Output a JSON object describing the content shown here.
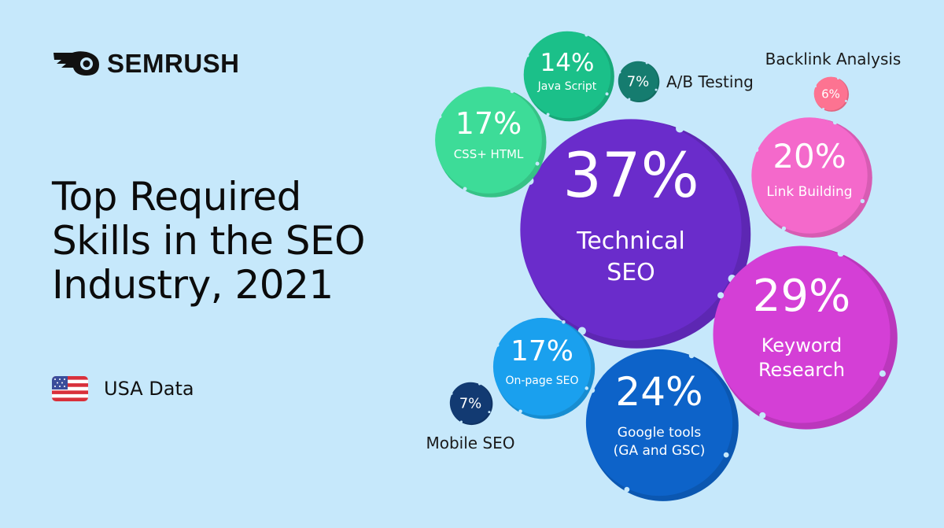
{
  "brand": {
    "name": "SEMRUSH"
  },
  "title_lines": [
    "Top Required",
    "Skills in the SEO",
    "Industry, 2021"
  ],
  "source": {
    "flag_icon": "us-flag-icon",
    "label": "USA Data"
  },
  "chart_data": {
    "type": "bubble",
    "unit": "%",
    "items": [
      {
        "skill": [
          "Technical",
          "SEO"
        ],
        "value": 37,
        "color": "#6a2ccb"
      },
      {
        "skill": [
          "Keyword",
          "Research"
        ],
        "value": 29,
        "color": "#d43fd6"
      },
      {
        "skill": [
          "Google tools",
          "(GA and GSC)"
        ],
        "value": 24,
        "color": "#0d63c9"
      },
      {
        "skill": [
          "Link Building"
        ],
        "value": 20,
        "color": "#f469cb"
      },
      {
        "skill": [
          "CSS+ HTML"
        ],
        "value": 17,
        "color": "#3ddc98"
      },
      {
        "skill": [
          "On-page SEO"
        ],
        "value": 17,
        "color": "#1aa0ee"
      },
      {
        "skill": [
          "Java Script"
        ],
        "value": 14,
        "color": "#1bc089"
      },
      {
        "skill": [
          "A/B Testing"
        ],
        "value": 7,
        "color": "#157c6f"
      },
      {
        "skill": [
          "Mobile SEO"
        ],
        "value": 7,
        "color": "#123a72"
      },
      {
        "skill": [
          "Backlink Analysis"
        ],
        "value": 6,
        "color": "#fd7391"
      }
    ]
  }
}
